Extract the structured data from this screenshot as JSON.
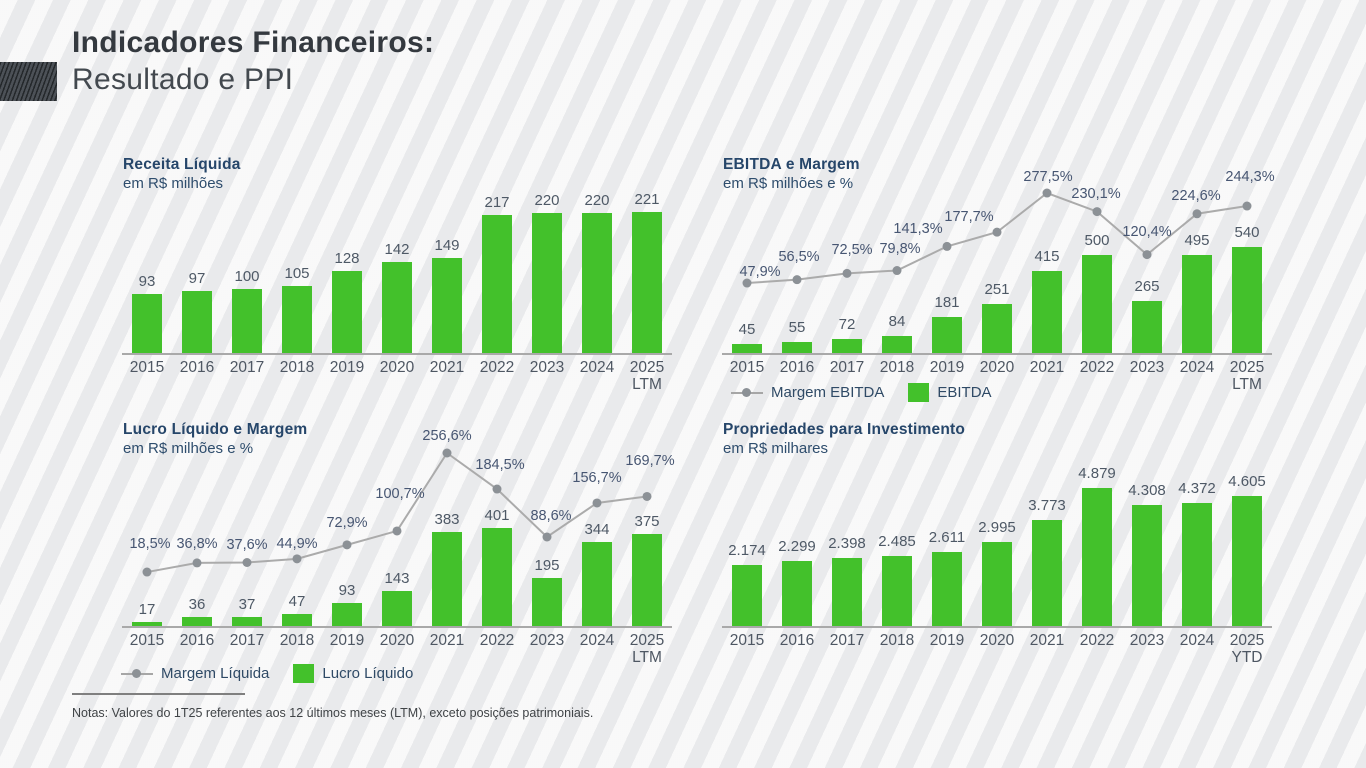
{
  "slide": {
    "title_bold": "Indicadores Financeiros:",
    "title_regular": "Resultado e PPI",
    "note": "Notas: Valores do 1T25 referentes aos 12 últimos meses (LTM), exceto posições patrimoniais."
  },
  "colors": {
    "bar_green": "#43c12b",
    "line_gray": "#ababab",
    "marker_gray": "#8c9196",
    "title_navy": "#26466a",
    "label_slate": "#4e5966",
    "accent_block": "#42484e",
    "background": "#f1f1f2"
  },
  "chart_data": [
    {
      "id": "receita",
      "type": "bar",
      "title": "Receita Líquida",
      "subtitle": "em R$ milhões",
      "categories": [
        "2015",
        "2016",
        "2017",
        "2018",
        "2019",
        "2020",
        "2021",
        "2022",
        "2023",
        "2024",
        "2025"
      ],
      "last_category_suffix": "LTM",
      "values": [
        93,
        97,
        100,
        105,
        128,
        142,
        149,
        217,
        220,
        220,
        221
      ],
      "value_labels": [
        "93",
        "97",
        "100",
        "105",
        "128",
        "142",
        "149",
        "217",
        "220",
        "220",
        "221"
      ]
    },
    {
      "id": "ebitda",
      "type": "bar+line",
      "title": "EBITDA e Margem",
      "subtitle": "em R$ milhões e %",
      "categories": [
        "2015",
        "2016",
        "2017",
        "2018",
        "2019",
        "2020",
        "2021",
        "2022",
        "2023",
        "2024",
        "2025"
      ],
      "last_category_suffix": "LTM",
      "series": [
        {
          "name": "EBITDA",
          "type": "bar",
          "values": [
            45,
            55,
            72,
            84,
            181,
            251,
            415,
            500,
            265,
            495,
            540
          ],
          "value_labels": [
            "45",
            "55",
            "72",
            "84",
            "181",
            "251",
            "415",
            "500",
            "265",
            "495",
            "540"
          ]
        },
        {
          "name": "Margem EBITDA",
          "type": "line",
          "unit": "%",
          "values": [
            47.9,
            56.5,
            72.5,
            79.8,
            141.3,
            177.7,
            277.5,
            230.1,
            120.4,
            224.6,
            244.3
          ],
          "value_labels": [
            "47,9%",
            "56,5%",
            "72,5%",
            "79,8%",
            "141,3%",
            "177,7%",
            "277,5%",
            "230,1%",
            "120,4%",
            "224,6%",
            "244,3%"
          ]
        }
      ],
      "legend": [
        {
          "label": "Margem EBITDA",
          "marker": "line-dot"
        },
        {
          "label": "EBITDA",
          "marker": "square"
        }
      ]
    },
    {
      "id": "lucro",
      "type": "bar+line",
      "title": "Lucro Líquido e Margem",
      "subtitle": "em R$ milhões e %",
      "categories": [
        "2015",
        "2016",
        "2017",
        "2018",
        "2019",
        "2020",
        "2021",
        "2022",
        "2023",
        "2024",
        "2025"
      ],
      "last_category_suffix": "LTM",
      "series": [
        {
          "name": "Lucro Líquido",
          "type": "bar",
          "values": [
            17,
            36,
            37,
            47,
            93,
            143,
            383,
            401,
            195,
            344,
            375
          ],
          "value_labels": [
            "17",
            "36",
            "37",
            "47",
            "93",
            "143",
            "383",
            "401",
            "195",
            "344",
            "375"
          ]
        },
        {
          "name": "Margem Líquida",
          "type": "line",
          "unit": "%",
          "values": [
            18.5,
            36.8,
            37.6,
            44.9,
            72.9,
            100.7,
            256.6,
            184.5,
            88.6,
            156.7,
            169.7
          ],
          "value_labels": [
            "18,5%",
            "36,8%",
            "37,6%",
            "44,9%",
            "72,9%",
            "100,7%",
            "256,6%",
            "184,5%",
            "88,6%",
            "156,7%",
            "169,7%"
          ]
        }
      ],
      "legend": [
        {
          "label": "Margem Líquida",
          "marker": "line-dot"
        },
        {
          "label": "Lucro Líquido",
          "marker": "square"
        }
      ]
    },
    {
      "id": "ppi",
      "type": "bar",
      "title": "Propriedades para Investimento",
      "subtitle": "em R$ milhares",
      "categories": [
        "2015",
        "2016",
        "2017",
        "2018",
        "2019",
        "2020",
        "2021",
        "2022",
        "2023",
        "2024",
        "2025"
      ],
      "last_category_suffix": "YTD",
      "values": [
        2174,
        2299,
        2398,
        2485,
        2611,
        2995,
        3773,
        4879,
        4308,
        4372,
        4605
      ],
      "value_labels": [
        "2.174",
        "2.299",
        "2.398",
        "2.485",
        "2.611",
        "2.995",
        "3.773",
        "4.879",
        "4.308",
        "4.372",
        "4.605"
      ]
    }
  ]
}
